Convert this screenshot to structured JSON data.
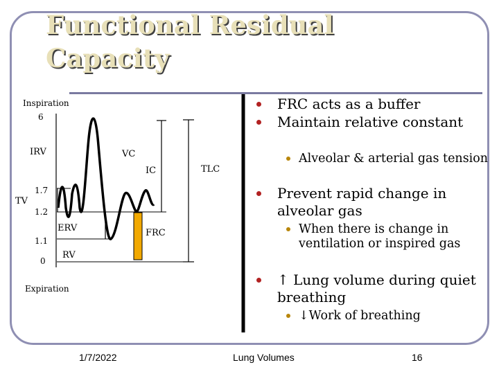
{
  "slide": {
    "title_line1": "Functional Residual",
    "title_line2": "Capacity"
  },
  "diagram": {
    "label_inspiration": "Inspiration",
    "label_6": "6",
    "label_irv": "IRV",
    "label_vc": "VC",
    "label_ic": "IC",
    "label_tlc": "TLC",
    "label_tv": "TV",
    "label_1_7": "1.7",
    "label_1_2": "1.2",
    "label_erv": "ERV",
    "label_1_1": "1.1",
    "label_frc": "FRC",
    "label_0": "0",
    "label_rv": "RV",
    "label_expiration": "Expiration",
    "frc_bar_color": "#f2a900"
  },
  "bullets": [
    {
      "text": "FRC acts as a buffer"
    },
    {
      "text": "Maintain relative constant",
      "subs": [
        "Alveolar & arterial gas tension"
      ]
    },
    {
      "text": "Prevent rapid change in alveolar gas",
      "subs": [
        "When there is change in ventilation or inspired gas"
      ]
    },
    {
      "text": "↑ Lung volume during quiet breathing",
      "subs": [
        "↓Work of breathing"
      ]
    }
  ],
  "footer": {
    "date": "1/7/2022",
    "center": "Lung Volumes",
    "page": "16"
  }
}
